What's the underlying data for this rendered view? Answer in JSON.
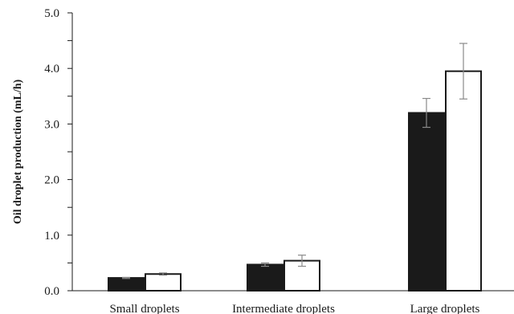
{
  "chart_data": {
    "type": "bar",
    "title": "",
    "xlabel": "",
    "ylabel": "Oil droplet production (mL/h)",
    "ylim": [
      0,
      5
    ],
    "yticks": [
      "0.0",
      "1.0",
      "2.0",
      "3.0",
      "4.0",
      "5.0"
    ],
    "categories": [
      "Small droplets",
      "Intermediate droplets",
      "Large droplets"
    ],
    "series": [
      {
        "fill": "#1a1a1a",
        "values": [
          0.23,
          0.47,
          3.2
        ],
        "errors": [
          0.01,
          0.03,
          0.26
        ]
      },
      {
        "fill": "#ffffff",
        "values": [
          0.3,
          0.54,
          3.95
        ],
        "errors": [
          0.02,
          0.1,
          0.5
        ]
      }
    ],
    "grid": false,
    "legend": "none"
  }
}
